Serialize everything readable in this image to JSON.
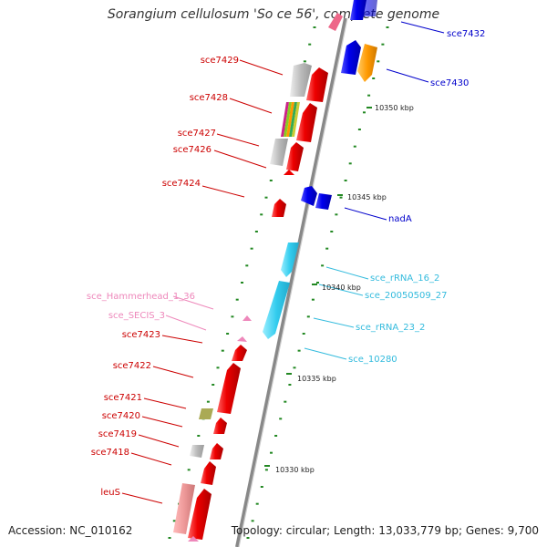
{
  "title": "Sorangium cellulosum 'So ce 56', complete genome",
  "footer": {
    "accession": "Accession: NC_010162",
    "topology": "Topology: circular; Length: 13,033,779 bp; Genes: 9,700"
  },
  "ticks": [
    {
      "label": "10350 kbp",
      "kbp": 10350
    },
    {
      "label": "10345 kbp",
      "kbp": 10345
    },
    {
      "label": "10340 kbp",
      "kbp": 10340
    },
    {
      "label": "10335 kbp",
      "kbp": 10335
    },
    {
      "label": "10330 kbp",
      "kbp": 10330
    }
  ],
  "features_left": [
    {
      "label": "sce7429",
      "type": "gene",
      "color": "#cc0000"
    },
    {
      "label": "sce7428",
      "type": "gene",
      "color": "#cc0000"
    },
    {
      "label": "sce7427",
      "type": "gene",
      "color": "#cc0000"
    },
    {
      "label": "sce7426",
      "type": "gene",
      "color": "#cc0000"
    },
    {
      "label": "sce7424",
      "type": "gene",
      "color": "#cc0000"
    },
    {
      "label": "sce_Hammerhead_1_36",
      "type": "misc_RNA",
      "color": "#ee88bb"
    },
    {
      "label": "sce_SECIS_3",
      "type": "misc_RNA",
      "color": "#ee88bb"
    },
    {
      "label": "sce7423",
      "type": "gene",
      "color": "#cc0000"
    },
    {
      "label": "sce7422",
      "type": "gene",
      "color": "#cc0000"
    },
    {
      "label": "sce7421",
      "type": "gene",
      "color": "#cc0000"
    },
    {
      "label": "sce7420",
      "type": "gene",
      "color": "#cc0000"
    },
    {
      "label": "sce7419",
      "type": "gene",
      "color": "#cc0000"
    },
    {
      "label": "sce7418",
      "type": "gene",
      "color": "#cc0000"
    },
    {
      "label": "leuS",
      "type": "gene",
      "color": "#cc0000"
    }
  ],
  "features_right": [
    {
      "label": "sce7432",
      "type": "gene",
      "color": "#0000aa"
    },
    {
      "label": "sce7430",
      "type": "gene",
      "color": "#0000aa"
    },
    {
      "label": "nadA",
      "type": "gene",
      "color": "#0000aa"
    },
    {
      "label": "sce_rRNA_16_2",
      "type": "rRNA",
      "color": "#33bbdd"
    },
    {
      "label": "sce_20050509_27",
      "type": "rRNA",
      "color": "#33bbdd"
    },
    {
      "label": "sce_rRNA_23_2",
      "type": "rRNA",
      "color": "#33bbdd"
    },
    {
      "label": "sce_10280",
      "type": "rRNA",
      "color": "#33bbdd"
    }
  ],
  "colors": {
    "gene_forward": "#ee0000",
    "gene_reverse": "#0000ee",
    "rrna": "#33ccee",
    "pseudo": "#ee9999",
    "orf": "#ff9900",
    "grey": "#bbbbbb",
    "olive": "#aaaa55",
    "backbone": "#888888",
    "dash": "#228822"
  }
}
